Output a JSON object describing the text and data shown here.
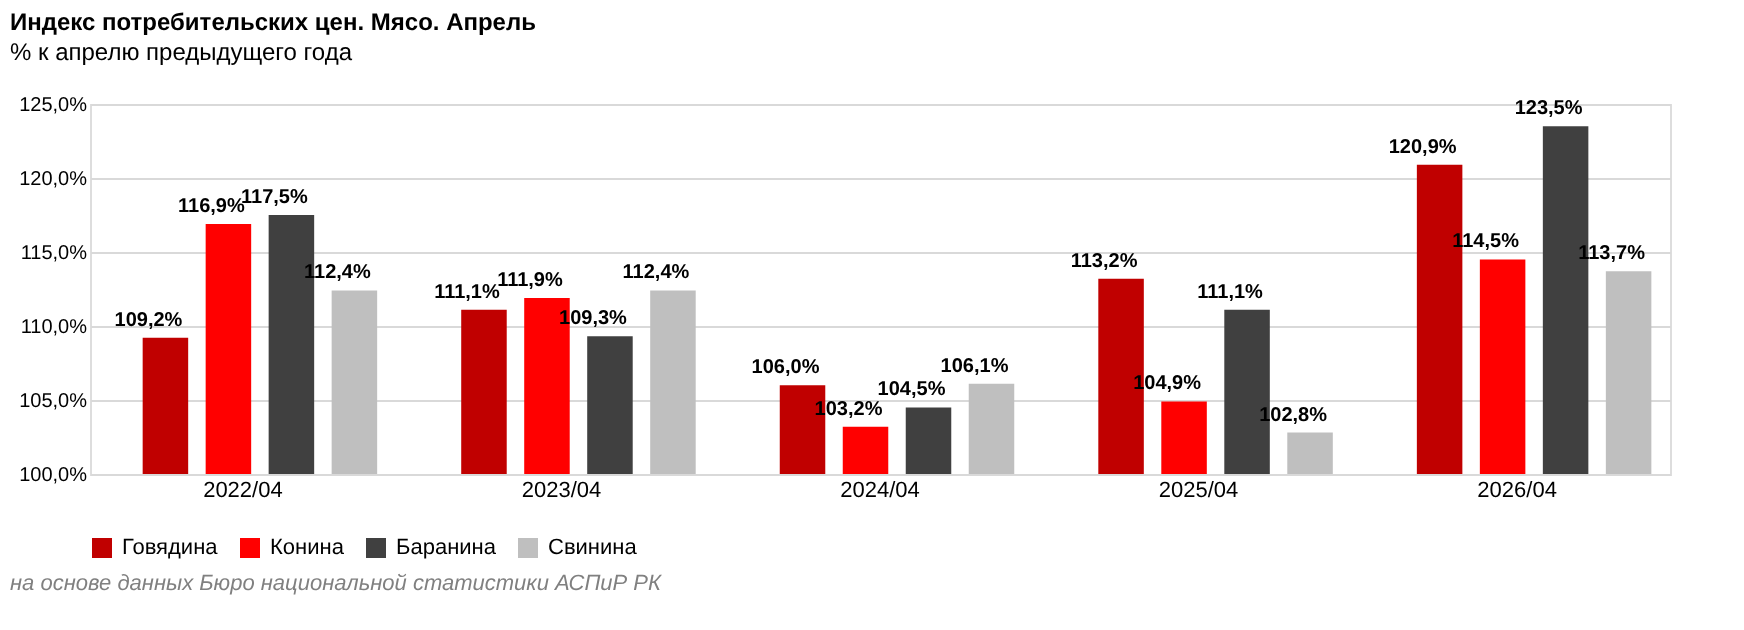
{
  "chart_data": {
    "type": "bar",
    "title": "Индекс потребительских цен. Мясо. Апрель",
    "subtitle": "% к апрелю предыдущего года",
    "categories": [
      "2022/04",
      "2023/04",
      "2024/04",
      "2025/04",
      "2026/04"
    ],
    "series": [
      {
        "name": "Говядина",
        "color": "#c00000",
        "values": [
          109.2,
          111.1,
          106.0,
          113.2,
          120.9
        ],
        "value_labels": [
          "109,2%",
          "111,1%",
          "106,0%",
          "113,2%",
          "120,9%"
        ]
      },
      {
        "name": "Конина",
        "color": "#ff0000",
        "values": [
          116.9,
          111.9,
          103.2,
          104.9,
          114.5
        ],
        "value_labels": [
          "116,9%",
          "111,9%",
          "103,2%",
          "104,9%",
          "114,5%"
        ]
      },
      {
        "name": "Баранина",
        "color": "#404040",
        "values": [
          117.5,
          109.3,
          104.5,
          111.1,
          123.5
        ],
        "value_labels": [
          "117,5%",
          "109,3%",
          "104,5%",
          "111,1%",
          "123,5%"
        ]
      },
      {
        "name": "Свинина",
        "color": "#bfbfbf",
        "values": [
          112.4,
          112.4,
          106.1,
          102.8,
          113.7
        ],
        "value_labels": [
          "112,4%",
          "112,4%",
          "106,1%",
          "102,8%",
          "113,7%"
        ]
      }
    ],
    "ylim": [
      100,
      125
    ],
    "yticks": [
      {
        "value": 100,
        "label": "100,0%"
      },
      {
        "value": 105,
        "label": "105,0%"
      },
      {
        "value": 110,
        "label": "110,0%"
      },
      {
        "value": 115,
        "label": "115,0%"
      },
      {
        "value": 120,
        "label": "120,0%"
      },
      {
        "value": 125,
        "label": "125,0%"
      }
    ],
    "grid": "y",
    "legend": "bottom",
    "annotations": [
      "на основе данных Бюро национальной статистики АСПиР РК"
    ]
  }
}
